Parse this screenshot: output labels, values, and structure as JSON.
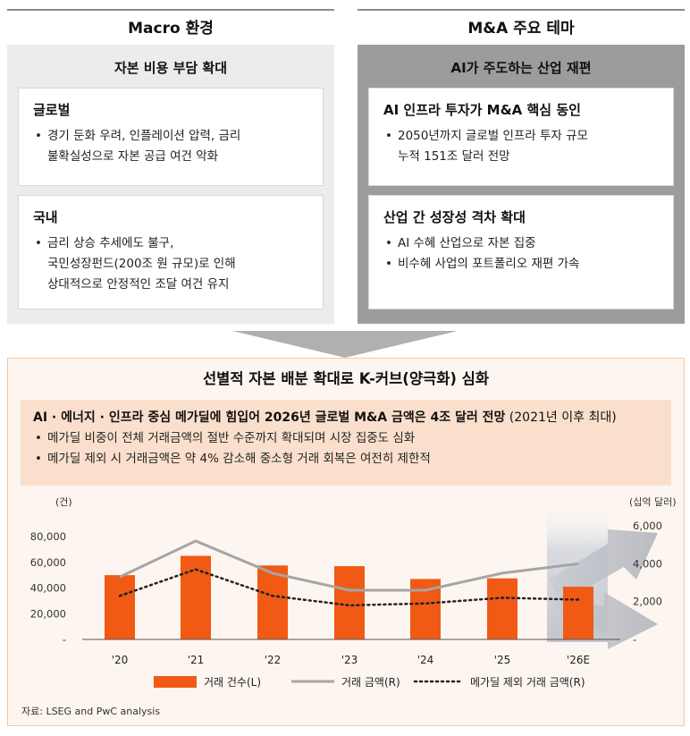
{
  "left": {
    "heading": "Macro 환경",
    "subheading": "자본 비용 부담 확대",
    "cards": [
      {
        "title": "글로벌",
        "bullets": [
          "경기 둔화 우려, 인플레이션 압력, 금리",
          "불확실성으로 자본 공급 여건 악화"
        ]
      },
      {
        "title": "국내",
        "bullets": [
          "금리 상승 추세에도 불구,",
          "국민성장펀드(200조 원 규모)로 인해",
          "상대적으로 안정적인 조달 여건 유지"
        ]
      }
    ]
  },
  "right": {
    "heading": "M&A 주요 테마",
    "subheading": "AI가 주도하는 산업 재편",
    "cards": [
      {
        "title": "AI 인프라 투자가 M&A 핵심 동인",
        "bullets": [
          "2050년까지 글로벌 인프라 투자 규모",
          "누적 151조 달러 전망"
        ]
      },
      {
        "title": "산업 간 성장성 격차 확대",
        "bullets": [
          "AI 수혜 산업으로 자본 집중",
          "비수혜 사업의 포트폴리오 재편 가속"
        ]
      }
    ]
  },
  "bottom": {
    "title": "선별적 자본 배분 확대로 K-커브(양극화) 심화",
    "highlight_bold": "AI · 에너지 · 인프라 중심 메가딜에 힘입어 2026년 글로벌 M&A 금액은 4조 달러 전망",
    "highlight_normal": " (2021년 이후 최대)",
    "bullets": [
      "메가딜 비중이 전체 거래금액의 절반 수준까지 확대되며 시장 집중도 심화",
      "메가딜 제외 시 거래금액은 약 4% 감소해 중소형 거래 회복은 여전히 제한적"
    ]
  },
  "chart_data": {
    "type": "bar",
    "categories": [
      "'20",
      "'21",
      "'22",
      "'23",
      "'24",
      "'25",
      "'26E"
    ],
    "left_unit": "(건)",
    "right_unit": "(십억 달러)",
    "left_ticks": [
      "80,000",
      "60,000",
      "40,000",
      "20,000",
      "-"
    ],
    "right_ticks": [
      "6,000",
      "4,000",
      "2,000",
      "-"
    ],
    "ylim_left": [
      0,
      80000
    ],
    "ylim_right": [
      0,
      6000
    ],
    "series": [
      {
        "name": "거래 건수(L)",
        "type": "bar",
        "axis": "left",
        "color": "#f05a14",
        "values": [
          50000,
          65000,
          57500,
          57000,
          47000,
          47500,
          41000
        ]
      },
      {
        "name": "거래 금액(R)",
        "type": "line",
        "axis": "right",
        "color": "#a5a5a5",
        "values": [
          3300,
          5200,
          3500,
          2600,
          2600,
          3500,
          4000
        ]
      },
      {
        "name": "메가딜 제외 거래 금액(R)",
        "type": "dotted",
        "axis": "right",
        "color": "#222222",
        "values": [
          2300,
          3700,
          2300,
          1800,
          1900,
          2200,
          2100
        ]
      }
    ]
  },
  "source": "자료: LSEG and PwC analysis"
}
